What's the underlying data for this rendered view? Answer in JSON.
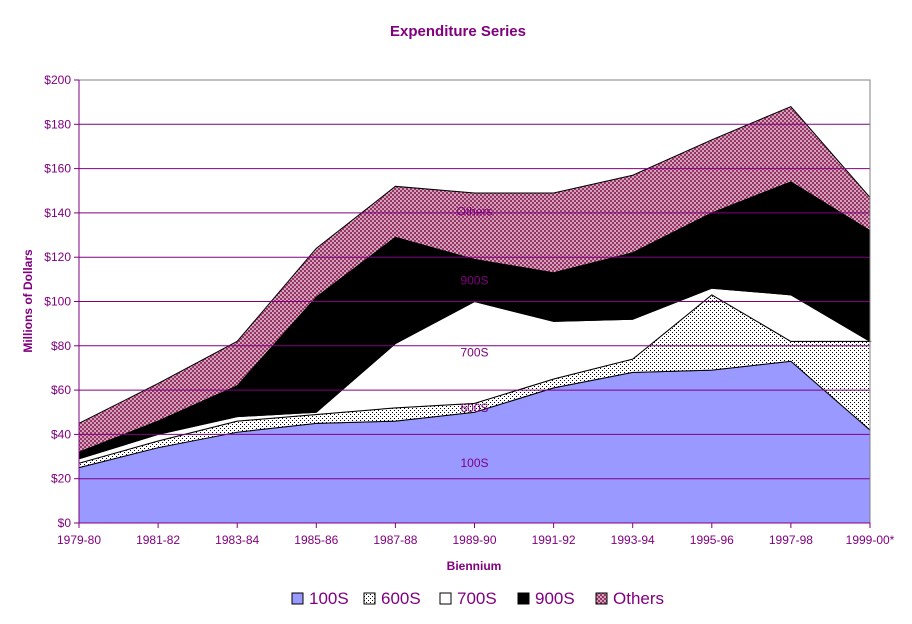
{
  "chart_data": {
    "type": "area",
    "stacked": true,
    "title": "Expenditure Series",
    "xlabel": "Biennium",
    "ylabel": "Millions of Dollars",
    "categories": [
      "1979-80",
      "1981-82",
      "1983-84",
      "1985-86",
      "1987-88",
      "1989-90",
      "1991-92",
      "1993-94",
      "1995-96",
      "1997-98",
      "1999-00*"
    ],
    "ylim": [
      0,
      200
    ],
    "yticks": [
      0,
      20,
      40,
      60,
      80,
      100,
      120,
      140,
      160,
      180,
      200
    ],
    "ytick_labels": [
      "$0",
      "$20",
      "$40",
      "$60",
      "$80",
      "$100",
      "$120",
      "$140",
      "$160",
      "$180",
      "$200"
    ],
    "grid": true,
    "legend_position": "bottom",
    "series": [
      {
        "name": "100S",
        "label": "100S",
        "values": [
          25,
          34,
          41,
          45,
          46,
          50,
          61,
          68,
          69,
          73,
          42
        ],
        "color": "#9999ff",
        "pattern": "solid"
      },
      {
        "name": "600S",
        "label": "600S",
        "values": [
          2,
          3,
          5,
          4,
          6,
          4,
          4,
          6,
          34,
          9,
          40
        ],
        "color": "#ffffff",
        "pattern": "dots"
      },
      {
        "name": "700S",
        "label": "700S",
        "values": [
          2,
          3,
          2,
          1,
          29,
          46,
          26,
          18,
          3,
          21,
          0
        ],
        "color": "#ffffff",
        "pattern": "solid"
      },
      {
        "name": "900S",
        "label": "900S",
        "values": [
          3,
          6,
          14,
          52,
          48,
          19,
          22,
          30,
          34,
          51,
          50
        ],
        "color": "#000000",
        "pattern": "solid"
      },
      {
        "name": "Others",
        "label": "Others",
        "values": [
          13,
          17,
          20,
          22,
          23,
          30,
          36,
          35,
          33,
          34,
          15
        ],
        "color": "#993366",
        "pattern": "hatch"
      }
    ]
  }
}
